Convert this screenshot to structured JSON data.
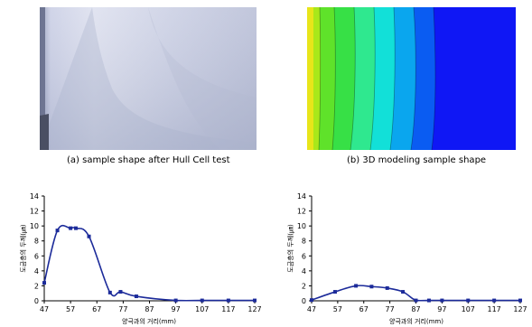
{
  "captions": {
    "a": "(a) sample shape after Hull Cell test",
    "b": "(b) 3D modeling sample shape"
  },
  "chart_data": [
    {
      "type": "line",
      "xlabel": "양극과의 거리(mm)",
      "ylabel": "도금층의 두께(㎛)",
      "x_ticks": [
        47,
        57,
        67,
        77,
        87,
        97,
        107,
        117,
        127
      ],
      "y_ticks": [
        0,
        2,
        4,
        6,
        8,
        10,
        12,
        14
      ],
      "xlim": [
        47,
        127
      ],
      "ylim": [
        0,
        14
      ],
      "grid": false,
      "x": [
        47,
        52,
        57,
        59,
        64,
        72,
        76,
        82,
        97,
        107,
        117,
        127
      ],
      "y": [
        2.4,
        9.4,
        9.7,
        9.7,
        8.6,
        1.1,
        1.2,
        0.6,
        0.05,
        0.05,
        0.05,
        0.05
      ],
      "color": "#1c2b9a"
    },
    {
      "type": "line",
      "xlabel": "양극과의 거리(mm)",
      "ylabel": "도금층의 두께(㎛)",
      "x_ticks": [
        47,
        57,
        67,
        77,
        87,
        97,
        107,
        117,
        127
      ],
      "y_ticks": [
        0,
        2,
        4,
        6,
        8,
        10,
        12,
        14
      ],
      "xlim": [
        47,
        127
      ],
      "ylim": [
        0,
        14
      ],
      "grid": false,
      "x": [
        47,
        56,
        64,
        70,
        76,
        82,
        87,
        92,
        97,
        107,
        117,
        127
      ],
      "y": [
        0.1,
        1.2,
        2.0,
        1.9,
        1.7,
        1.2,
        0.05,
        0.05,
        0.05,
        0.05,
        0.05,
        0.05
      ],
      "color": "#1c2b9a"
    }
  ]
}
